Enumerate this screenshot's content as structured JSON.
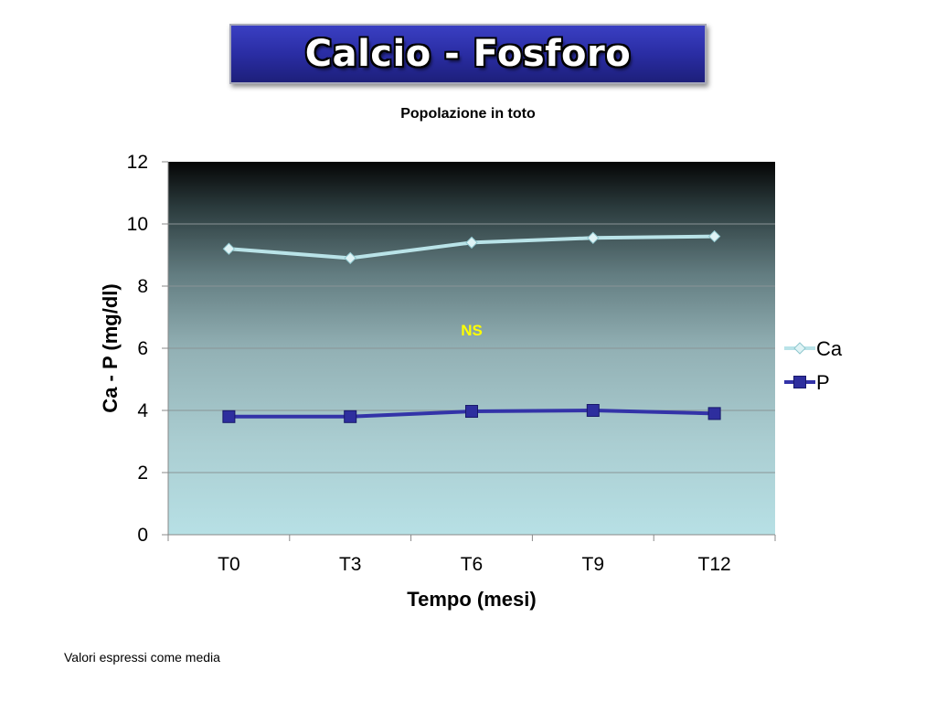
{
  "header": {
    "title": "Calcio - Fosforo"
  },
  "chart_data": {
    "type": "line",
    "title": "Popolazione in toto",
    "categories": [
      "T0",
      "T3",
      "T6",
      "T9",
      "T12"
    ],
    "xlabel": "Tempo (mesi)",
    "ylabel": "Ca - P (mg/dl)",
    "ylim": [
      0,
      12
    ],
    "yticks": [
      "0",
      "2",
      "4",
      "6",
      "8",
      "10",
      "12"
    ],
    "grid": true,
    "legend_position": "right",
    "series": [
      {
        "name": "Ca",
        "values": [
          9.2,
          8.9,
          9.4,
          9.55,
          9.6
        ],
        "color": "#b9e3e8",
        "marker": "diamond"
      },
      {
        "name": "P",
        "values": [
          3.8,
          3.8,
          3.97,
          4.0,
          3.9
        ],
        "color": "#3333a8",
        "marker": "square"
      }
    ],
    "annotation": {
      "text": "NS",
      "color": "#ffff00"
    }
  },
  "footnote": "Valori espressi come media"
}
